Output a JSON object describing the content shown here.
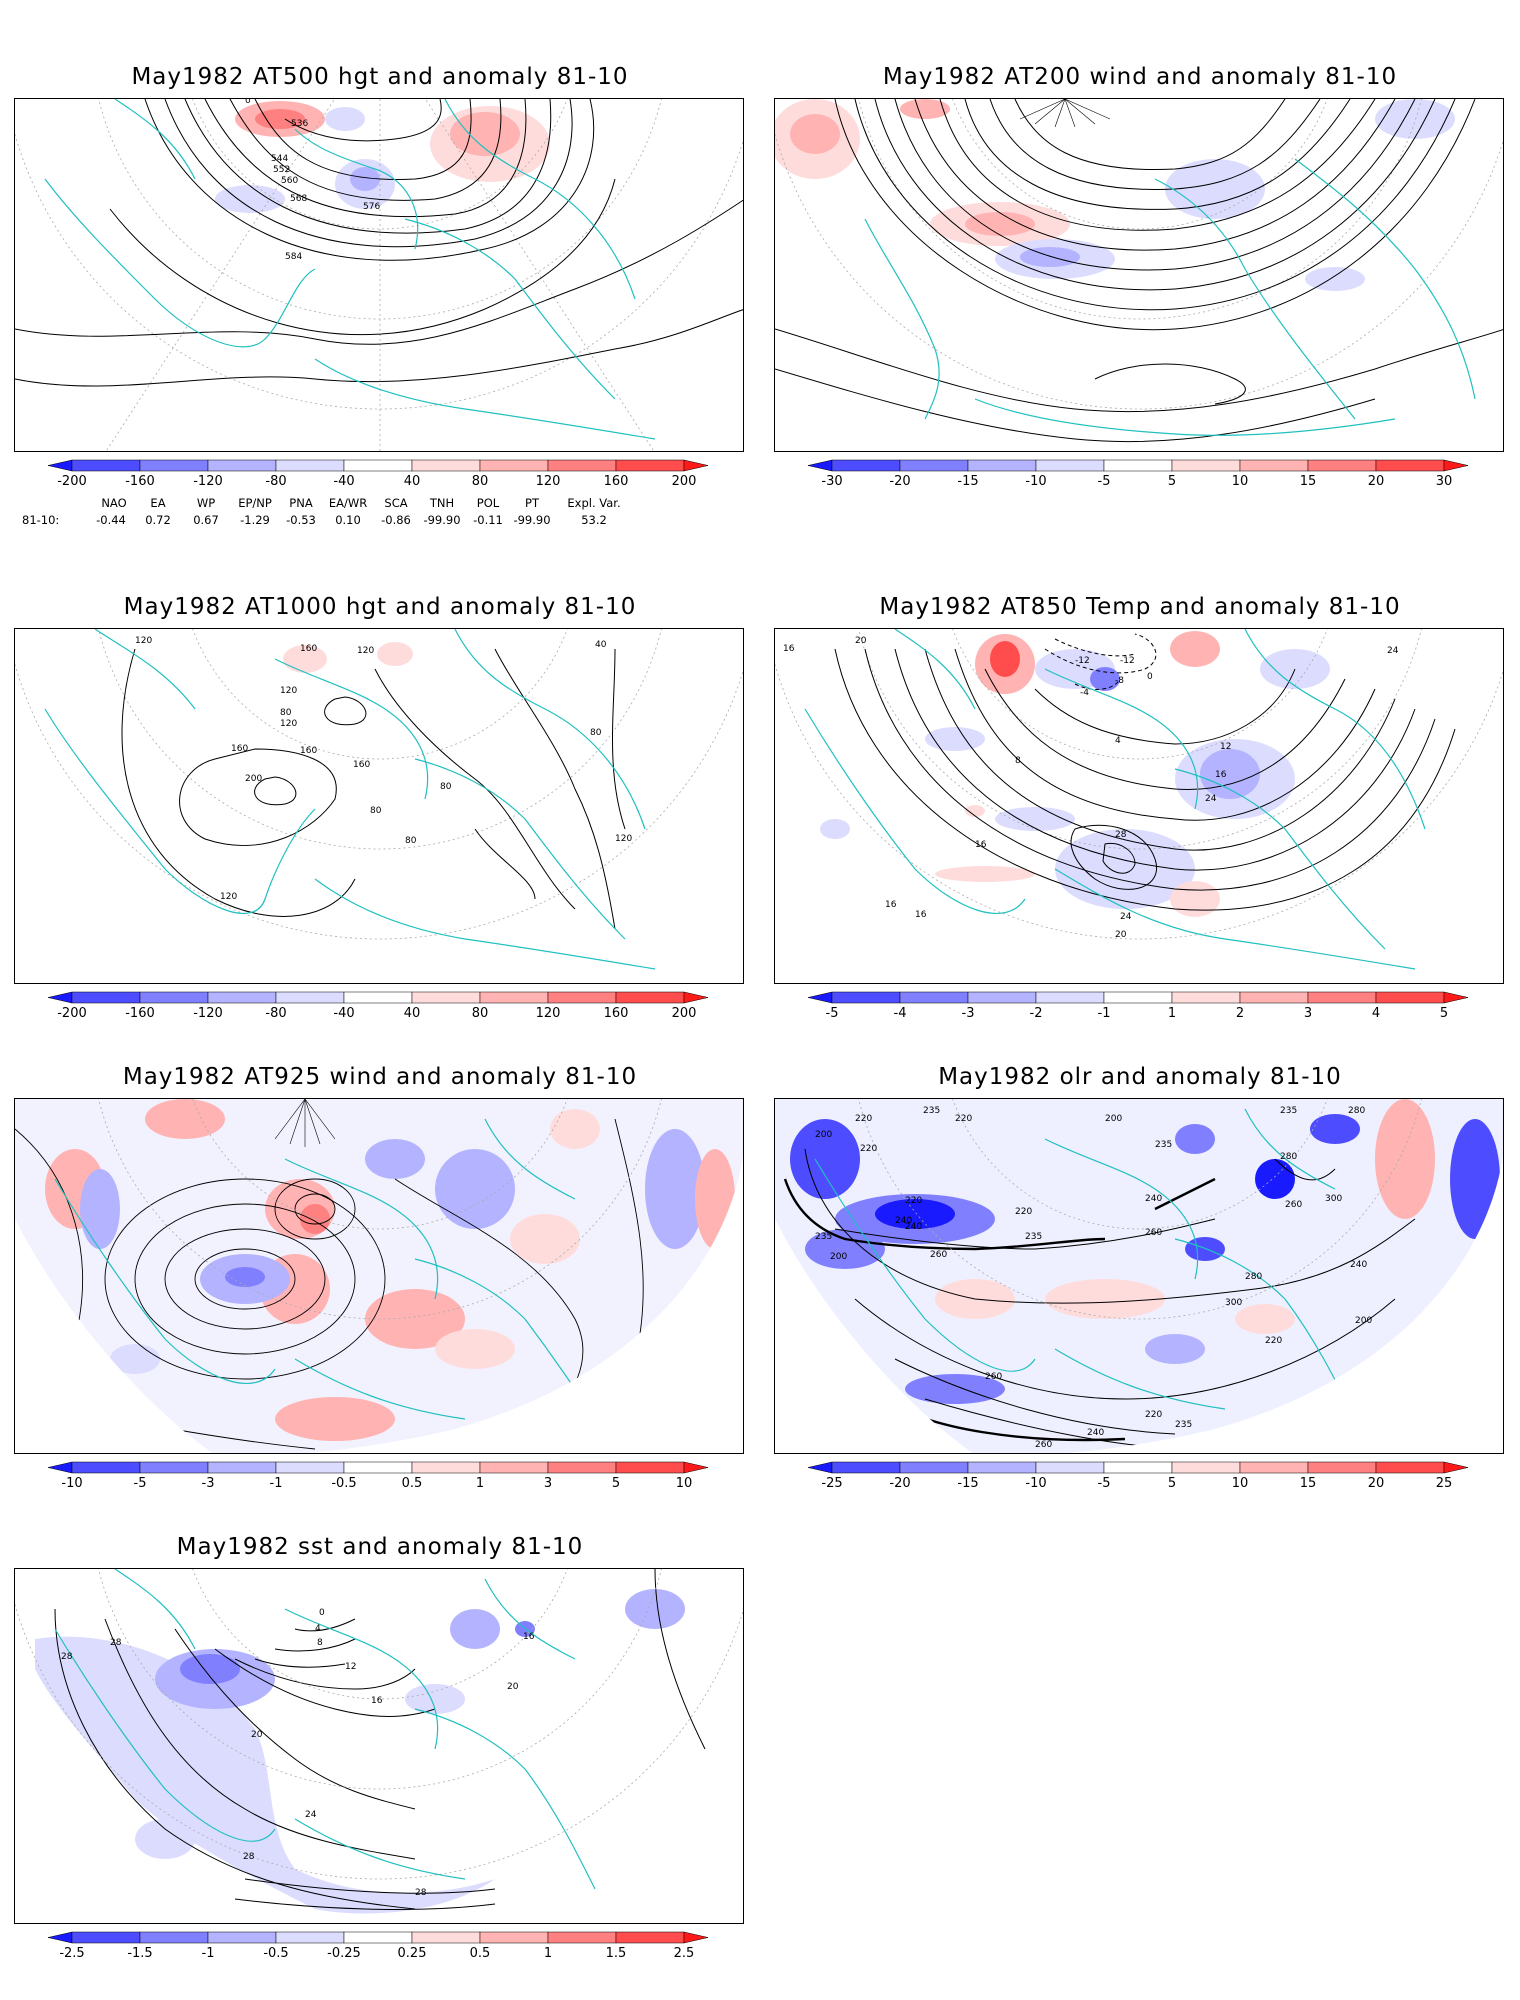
{
  "panels": [
    {
      "id": "p500",
      "title": "May1982 AT500 hgt and anomaly 81-10",
      "contour_labels": [
        "536",
        "544",
        "552",
        "560",
        "568",
        "576",
        "584",
        "0"
      ],
      "colorbar": [
        "-200",
        "-160",
        "-120",
        "-80",
        "-40",
        "40",
        "80",
        "120",
        "160",
        "200"
      ]
    },
    {
      "id": "p200",
      "title": "May1982 AT200 wind and anomaly 81-10",
      "contour_labels": [],
      "colorbar": [
        "-30",
        "-20",
        "-15",
        "-10",
        "-5",
        "5",
        "10",
        "15",
        "20",
        "30"
      ]
    },
    {
      "id": "p1000",
      "title": "May1982 AT1000 hgt and anomaly 81-10",
      "contour_labels": [
        "120",
        "160",
        "120",
        "80",
        "120",
        "160",
        "200",
        "160",
        "160",
        "120",
        "80",
        "80",
        "80",
        "120",
        "40",
        "80",
        "120"
      ],
      "colorbar": [
        "-200",
        "-160",
        "-120",
        "-80",
        "-40",
        "40",
        "80",
        "120",
        "160",
        "200"
      ]
    },
    {
      "id": "p850",
      "title": "May1982 AT850 Temp and anomaly 81-10",
      "contour_labels": [
        "16",
        "20",
        "-12",
        "-12",
        "-8",
        "-4",
        "0",
        "4",
        "8",
        "12",
        "16",
        "24",
        "28",
        "16",
        "24",
        "20",
        "16",
        "16",
        "24"
      ],
      "colorbar": [
        "-5",
        "-4",
        "-3",
        "-2",
        "-1",
        "1",
        "2",
        "3",
        "4",
        "5"
      ]
    },
    {
      "id": "p925",
      "title": "May1982 AT925 wind and anomaly 81-10",
      "contour_labels": [],
      "colorbar": [
        "-10",
        "-5",
        "-3",
        "-1",
        "-0.5",
        "0.5",
        "1",
        "3",
        "5",
        "10"
      ]
    },
    {
      "id": "polr",
      "title": "May1982 olr and anomaly 81-10",
      "contour_labels": [
        "235",
        "200",
        "220",
        "220",
        "200",
        "235",
        "280",
        "220",
        "235",
        "240",
        "280",
        "300",
        "220",
        "260",
        "240",
        "235",
        "260",
        "200",
        "240",
        "220",
        "260",
        "235",
        "200",
        "220",
        "240",
        "260",
        "280",
        "300",
        "220",
        "235",
        "240",
        "260"
      ],
      "colorbar": [
        "-25",
        "-20",
        "-15",
        "-10",
        "-5",
        "5",
        "10",
        "15",
        "20",
        "25"
      ]
    },
    {
      "id": "psst",
      "title": "May1982 sst and anomaly 81-10",
      "contour_labels": [
        "28",
        "28",
        "0",
        "4",
        "8",
        "12",
        "16",
        "20",
        "20",
        "24",
        "28",
        "28",
        "16"
      ],
      "colorbar": [
        "-2.5",
        "-1.5",
        "-1",
        "-0.5",
        "-0.25",
        "0.25",
        "0.5",
        "1",
        "1.5",
        "2.5"
      ]
    }
  ],
  "teleconnection": {
    "headers": [
      "NAO",
      "EA",
      "WP",
      "EP/NP",
      "PNA",
      "EA/WR",
      "SCA",
      "TNH",
      "POL",
      "PT",
      "Expl. Var."
    ],
    "row_label": "81-10:",
    "values": [
      "-0.44",
      "0.72",
      "0.67",
      "-1.29",
      "-0.53",
      "0.10",
      "-0.86",
      "-99.90",
      "-0.11",
      "-99.90",
      "53.2"
    ]
  },
  "colors": {
    "coast": "#20c0c0",
    "neg": [
      "#1a1aff",
      "#4d4dff",
      "#8080ff",
      "#b3b3ff",
      "#dcdcff"
    ],
    "pos": [
      "#ffdcdc",
      "#ffb3b3",
      "#ff8080",
      "#ff4d4d",
      "#ff1a1a"
    ]
  }
}
